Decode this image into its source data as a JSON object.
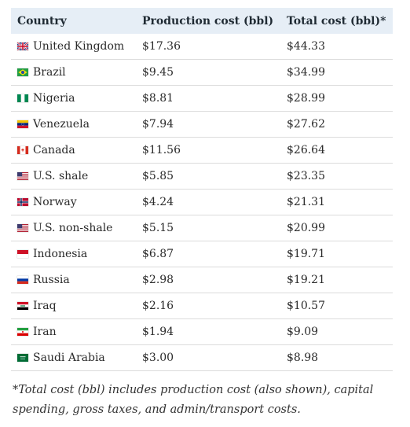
{
  "table": {
    "headers": {
      "country": "Country",
      "production": "Production cost (bbl)",
      "total": "Total cost (bbl)*"
    },
    "rows": [
      {
        "country": "United Kingdom",
        "flag": "uk-flag-icon",
        "production": "$17.36",
        "total": "$44.33"
      },
      {
        "country": "Brazil",
        "flag": "brazil-flag-icon",
        "production": "$9.45",
        "total": "$34.99"
      },
      {
        "country": "Nigeria",
        "flag": "nigeria-flag-icon",
        "production": "$8.81",
        "total": "$28.99"
      },
      {
        "country": "Venezuela",
        "flag": "venezuela-flag-icon",
        "production": "$7.94",
        "total": "$27.62"
      },
      {
        "country": "Canada",
        "flag": "canada-flag-icon",
        "production": "$11.56",
        "total": "$26.64"
      },
      {
        "country": "U.S. shale",
        "flag": "us-flag-icon",
        "production": "$5.85",
        "total": "$23.35"
      },
      {
        "country": "Norway",
        "flag": "norway-flag-icon",
        "production": "$4.24",
        "total": "$21.31"
      },
      {
        "country": "U.S. non-shale",
        "flag": "us-flag-icon",
        "production": "$5.15",
        "total": "$20.99"
      },
      {
        "country": "Indonesia",
        "flag": "indonesia-flag-icon",
        "production": "$6.87",
        "total": "$19.71"
      },
      {
        "country": "Russia",
        "flag": "russia-flag-icon",
        "production": "$2.98",
        "total": "$19.21"
      },
      {
        "country": "Iraq",
        "flag": "iraq-flag-icon",
        "production": "$2.16",
        "total": "$10.57"
      },
      {
        "country": "Iran",
        "flag": "iran-flag-icon",
        "production": "$1.94",
        "total": "$9.09"
      },
      {
        "country": "Saudi Arabia",
        "flag": "saudi-arabia-flag-icon",
        "production": "$3.00",
        "total": "$8.98"
      }
    ]
  },
  "footnote": "*Total cost (bbl) includes production cost (also shown), capital spending, gross taxes, and admin/transport costs.",
  "colors": {
    "header_bg": "#e6eef6",
    "row_border": "#dcdcdc",
    "text": "#222222"
  }
}
